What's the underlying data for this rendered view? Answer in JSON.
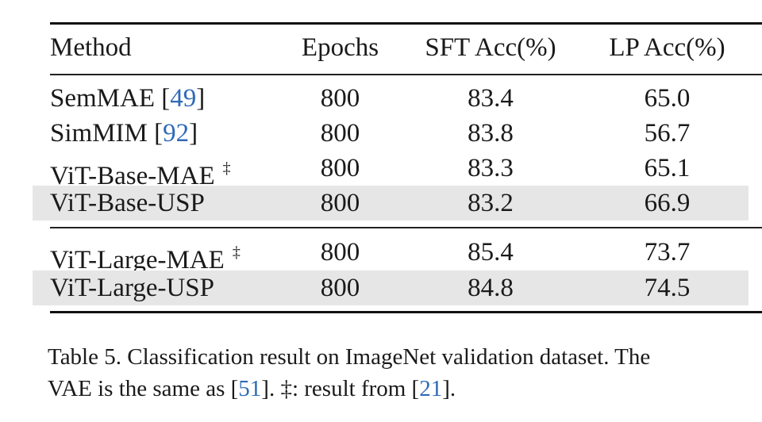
{
  "table": {
    "headers": [
      "Method",
      "Epochs",
      "SFT Acc(%)",
      "LP Acc(%)"
    ],
    "rows": [
      {
        "method": "SemMAE",
        "cite": "49",
        "dagger": "",
        "epochs": "800",
        "sft": "83.4",
        "lp": "65.0",
        "shaded": false
      },
      {
        "method": "SimMIM",
        "cite": "92",
        "dagger": "",
        "epochs": "800",
        "sft": "83.8",
        "lp": "56.7",
        "shaded": false
      },
      {
        "method": "ViT-Base-MAE",
        "cite": "",
        "dagger": "‡",
        "epochs": "800",
        "sft": "83.3",
        "lp": "65.1",
        "shaded": false
      },
      {
        "method": "ViT-Base-USP",
        "cite": "",
        "dagger": "",
        "epochs": "800",
        "sft": "83.2",
        "lp": "66.9",
        "shaded": true
      },
      {
        "method": "ViT-Large-MAE",
        "cite": "",
        "dagger": "‡",
        "epochs": "800",
        "sft": "85.4",
        "lp": "73.7",
        "shaded": false
      },
      {
        "method": "ViT-Large-USP",
        "cite": "",
        "dagger": "",
        "epochs": "800",
        "sft": "84.8",
        "lp": "74.5",
        "shaded": true
      }
    ]
  },
  "caption": {
    "line1": "Table 5. Classification result on ImageNet validation dataset. The",
    "line2_pre": "VAE is the same as [",
    "cite1": "51",
    "line2_mid": "]. ‡: result from [",
    "cite2": "21",
    "line2_post": "]."
  },
  "colors": {
    "cite": "#2f6ab6",
    "shade": "#e6e6e6"
  }
}
